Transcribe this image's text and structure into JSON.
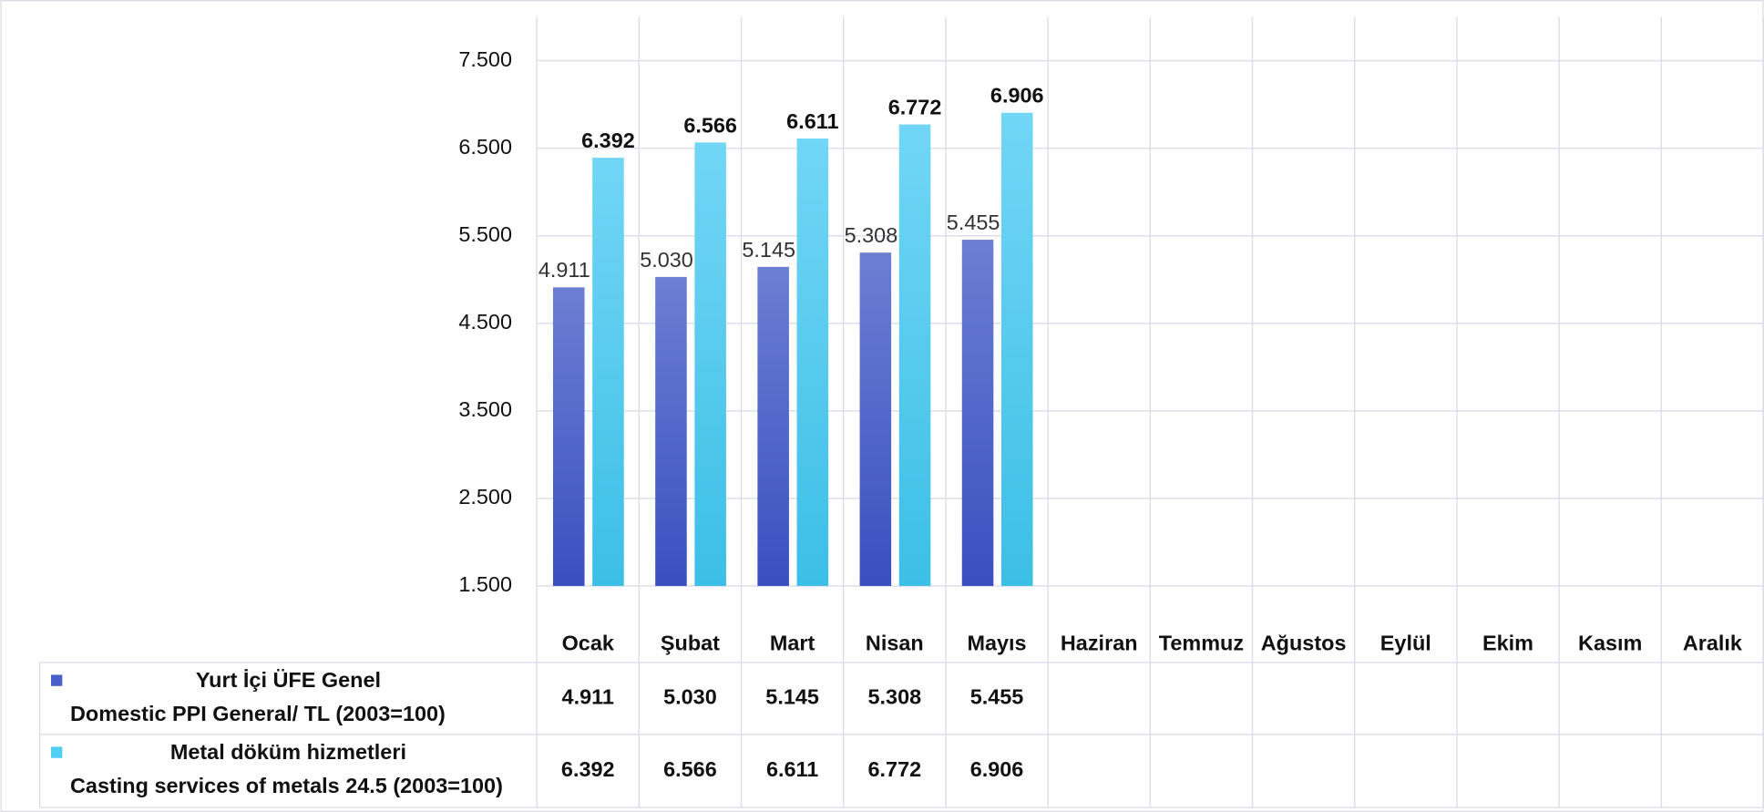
{
  "chart_data": {
    "type": "bar",
    "categories": [
      "Ocak",
      "Şubat",
      "Mart",
      "Nisan",
      "Mayıs",
      "Haziran",
      "Temmuz",
      "Ağustos",
      "Eylül",
      "Ekim",
      "Kasım",
      "Aralık"
    ],
    "series": [
      {
        "name": "Yurt İçi ÜFE Genel",
        "name_en": "Domestic PPI General/ TL   (2003=100)",
        "color": "#4a5fc9",
        "values": [
          4911,
          5030,
          5145,
          5308,
          5455,
          null,
          null,
          null,
          null,
          null,
          null,
          null
        ],
        "value_labels": [
          "4.911",
          "5.030",
          "5.145",
          "5.308",
          "5.455",
          null,
          null,
          null,
          null,
          null,
          null,
          null
        ]
      },
      {
        "name": "Metal döküm hizmetleri",
        "name_en": "Casting services of metals 24.5   (2003=100)",
        "color": "#4fcdf2",
        "values": [
          6392,
          6566,
          6611,
          6772,
          6906,
          null,
          null,
          null,
          null,
          null,
          null,
          null
        ],
        "value_labels": [
          "6.392",
          "6.566",
          "6.611",
          "6.772",
          "6.906",
          null,
          null,
          null,
          null,
          null,
          null,
          null
        ]
      }
    ],
    "ylim": [
      1500,
      7500
    ],
    "yticks": [
      {
        "value": 1500,
        "label": "1.500"
      },
      {
        "value": 2500,
        "label": "2.500"
      },
      {
        "value": 3500,
        "label": "3.500"
      },
      {
        "value": 4500,
        "label": "4.500"
      },
      {
        "value": 5500,
        "label": "5.500"
      },
      {
        "value": 6500,
        "label": "6.500"
      },
      {
        "value": 7500,
        "label": "7.500"
      }
    ],
    "grid": true
  }
}
